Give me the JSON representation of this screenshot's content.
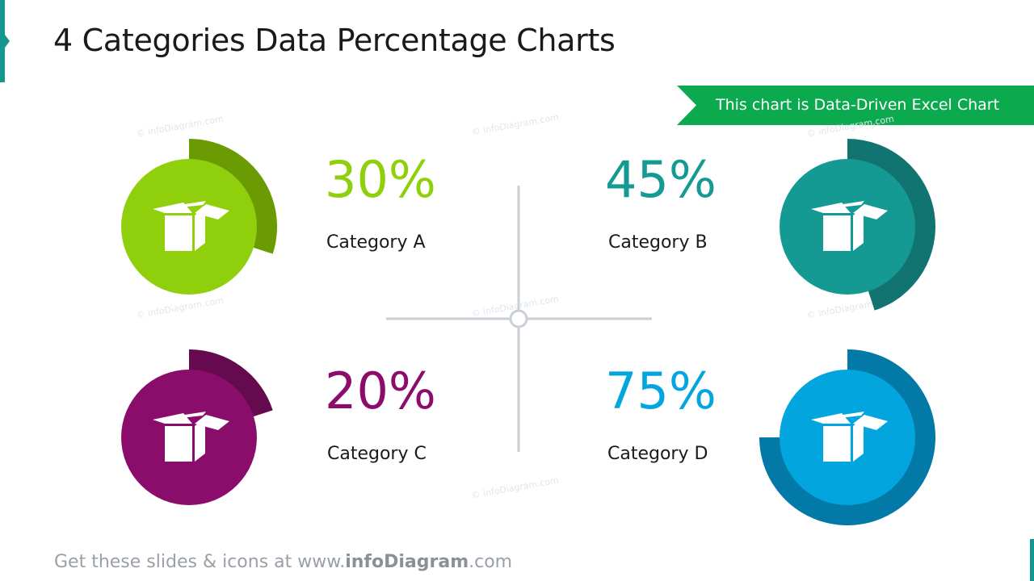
{
  "title": "4 Categories Data Percentage Charts",
  "banner": "This chart is Data-Driven Excel Chart",
  "watermark": "© infoDiagram.com",
  "footer": {
    "prefix": "Get these slides & icons at www.",
    "brand": "infoDiagram",
    "suffix": ".com"
  },
  "colors": {
    "accent_teal": "#169690",
    "banner_green": "#0caa4f",
    "divider": "#c9cfd5"
  },
  "chart_data": [
    {
      "type": "pie",
      "category": "Category A",
      "value": 30,
      "label": "30%",
      "icon": "box-icon",
      "fill": "#8fcf0c",
      "ring": "#6a9b02"
    },
    {
      "type": "pie",
      "category": "Category B",
      "value": 45,
      "label": "45%",
      "icon": "box-icon",
      "fill": "#159a93",
      "ring": "#117470"
    },
    {
      "type": "pie",
      "category": "Category C",
      "value": 20,
      "label": "20%",
      "icon": "box-icon",
      "fill": "#8a0d6b",
      "ring": "#650a4e"
    },
    {
      "type": "pie",
      "category": "Category D",
      "value": 75,
      "label": "75%",
      "icon": "box-icon",
      "fill": "#03a5df",
      "ring": "#0279a6"
    }
  ]
}
